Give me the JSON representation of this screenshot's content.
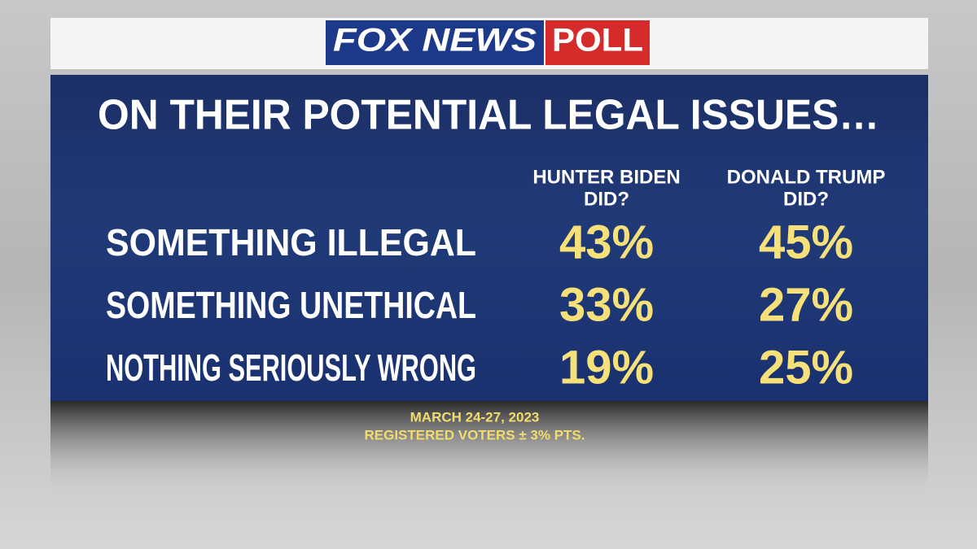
{
  "header": {
    "brand": "FOX NEWS",
    "poll": "POLL"
  },
  "title": "ON THEIR POTENTIAL LEGAL ISSUES…",
  "table": {
    "columns": [
      [
        "HUNTER BIDEN",
        "DID?"
      ],
      [
        "DONALD TRUMP",
        "DID?"
      ]
    ],
    "rows": [
      [
        "SOMETHING ILLEGAL",
        "43%",
        "45%"
      ],
      [
        "SOMETHING UNETHICAL",
        "33%",
        "27%"
      ],
      [
        "NOTHING SERIOUSLY WRONG",
        "19%",
        "25%"
      ]
    ]
  },
  "footer": [
    "MARCH 24-27, 2023",
    "REGISTERED VOTERS ± 3% PTS."
  ]
}
